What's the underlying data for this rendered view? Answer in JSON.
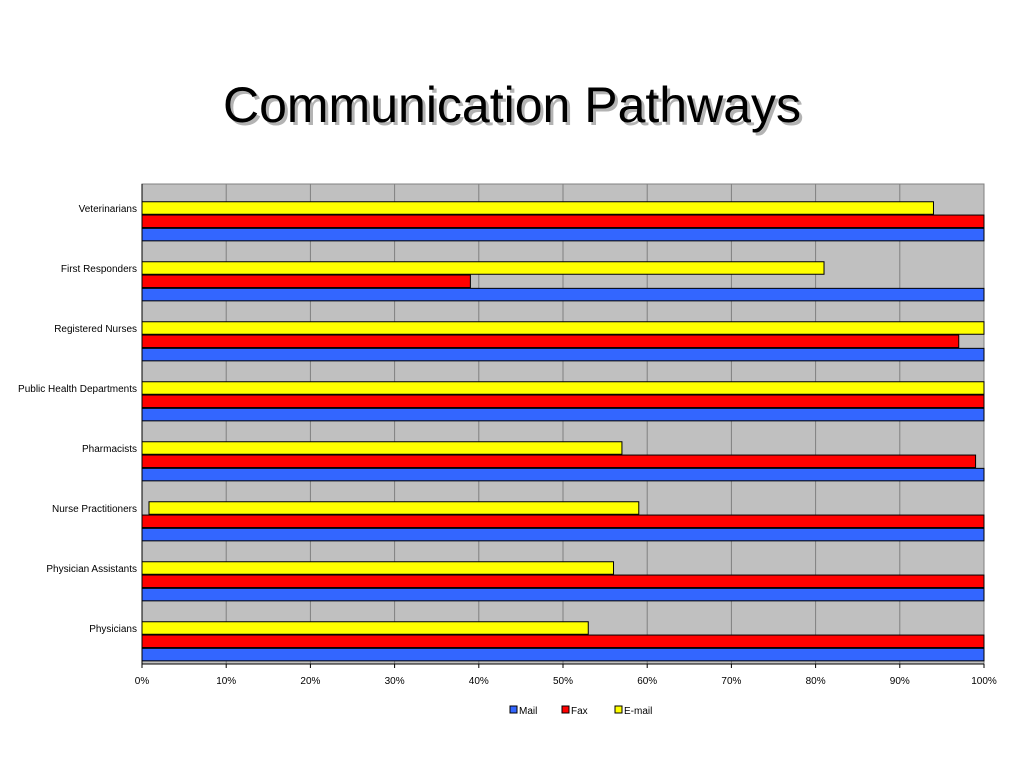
{
  "title": "Communication Pathways",
  "chart_data": {
    "type": "bar",
    "orientation": "horizontal",
    "title": "",
    "xlabel": "",
    "ylabel": "",
    "xlim": [
      0,
      100
    ],
    "x_ticks": [
      "0%",
      "10%",
      "20%",
      "30%",
      "40%",
      "50%",
      "60%",
      "70%",
      "80%",
      "90%",
      "100%"
    ],
    "categories": [
      "Veterinarians",
      "First Responders",
      "Registered Nurses",
      "Public Health Departments",
      "Pharmacists",
      "Nurse Practitioners",
      "Physician Assistants",
      "Physicians"
    ],
    "series": [
      {
        "name": "Mail",
        "color": "#3366ff",
        "values": [
          100,
          100,
          100,
          100,
          100,
          100,
          100,
          100
        ]
      },
      {
        "name": "Fax",
        "color": "#ff0000",
        "values": [
          100,
          39,
          97,
          100,
          99,
          100,
          100,
          100
        ]
      },
      {
        "name": "E-mail",
        "color": "#ffff00",
        "values": [
          94,
          81,
          100,
          100,
          57,
          59,
          56,
          53
        ]
      }
    ],
    "grid": true,
    "legend_position": "bottom",
    "plot_background": "#c0c0c0"
  }
}
